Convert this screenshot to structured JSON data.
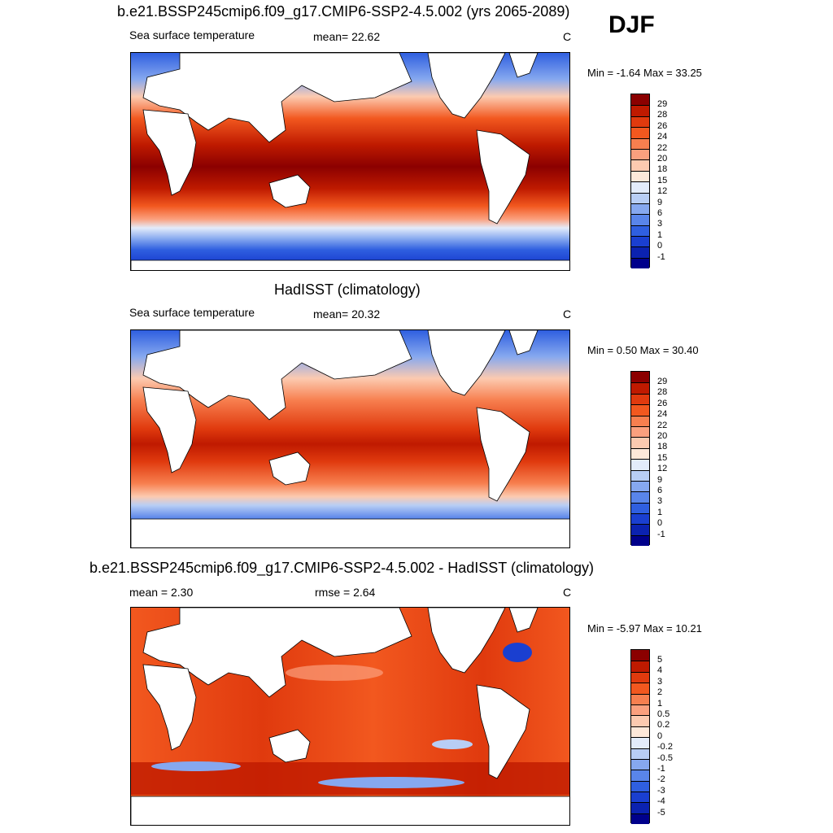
{
  "season": "DJF",
  "panels": [
    {
      "title": "b.e21.BSSP245cmip6.f09_g17.CMIP6-SSP2-4.5.002 (yrs 2065-2089)",
      "left_text": "Sea surface temperature",
      "center_text": "mean=  22.62",
      "units": "C",
      "minmax": "Min =  -1.64 Max =  33.25",
      "levels": [
        "29",
        "28",
        "26",
        "24",
        "22",
        "20",
        "18",
        "15",
        "12",
        "9",
        "6",
        "3",
        "1",
        "0",
        "-1"
      ],
      "colors": [
        "#8b0000",
        "#bf1a00",
        "#e03a0e",
        "#f2581f",
        "#f77f4f",
        "#fba07e",
        "#fccab0",
        "#fde8d9",
        "#e3ecfb",
        "#b8cef5",
        "#86a8ef",
        "#5985ea",
        "#2f5fe0",
        "#1a3fd0",
        "#0b22b0",
        "#00008b"
      ]
    },
    {
      "title": "HadISST (climatology)",
      "left_text": "Sea surface temperature",
      "center_text": "mean=  20.32",
      "units": "C",
      "minmax": "Min =   0.50 Max =  30.40",
      "levels": [
        "29",
        "28",
        "26",
        "24",
        "22",
        "20",
        "18",
        "15",
        "12",
        "9",
        "6",
        "3",
        "1",
        "0",
        "-1"
      ],
      "colors": [
        "#8b0000",
        "#bf1a00",
        "#e03a0e",
        "#f2581f",
        "#f77f4f",
        "#fba07e",
        "#fccab0",
        "#fde8d9",
        "#e3ecfb",
        "#b8cef5",
        "#86a8ef",
        "#5985ea",
        "#2f5fe0",
        "#1a3fd0",
        "#0b22b0",
        "#00008b"
      ]
    },
    {
      "title": "b.e21.BSSP245cmip6.f09_g17.CMIP6-SSP2-4.5.002 - HadISST (climatology)",
      "left_text": "mean =   2.30",
      "center_text": "rmse =   2.64",
      "units": "C",
      "minmax": "Min =  -5.97 Max =  10.21",
      "levels": [
        "5",
        "4",
        "3",
        "2",
        "1",
        "0.5",
        "0.2",
        "0",
        "-0.2",
        "-0.5",
        "-1",
        "-2",
        "-3",
        "-4",
        "-5"
      ],
      "colors": [
        "#8b0000",
        "#bf1a00",
        "#e03a0e",
        "#f2581f",
        "#f77f4f",
        "#fba07e",
        "#fccab0",
        "#fde8d9",
        "#e3ecfb",
        "#b8cef5",
        "#86a8ef",
        "#5985ea",
        "#2f5fe0",
        "#1a3fd0",
        "#0b22b0",
        "#00008b"
      ]
    }
  ]
}
